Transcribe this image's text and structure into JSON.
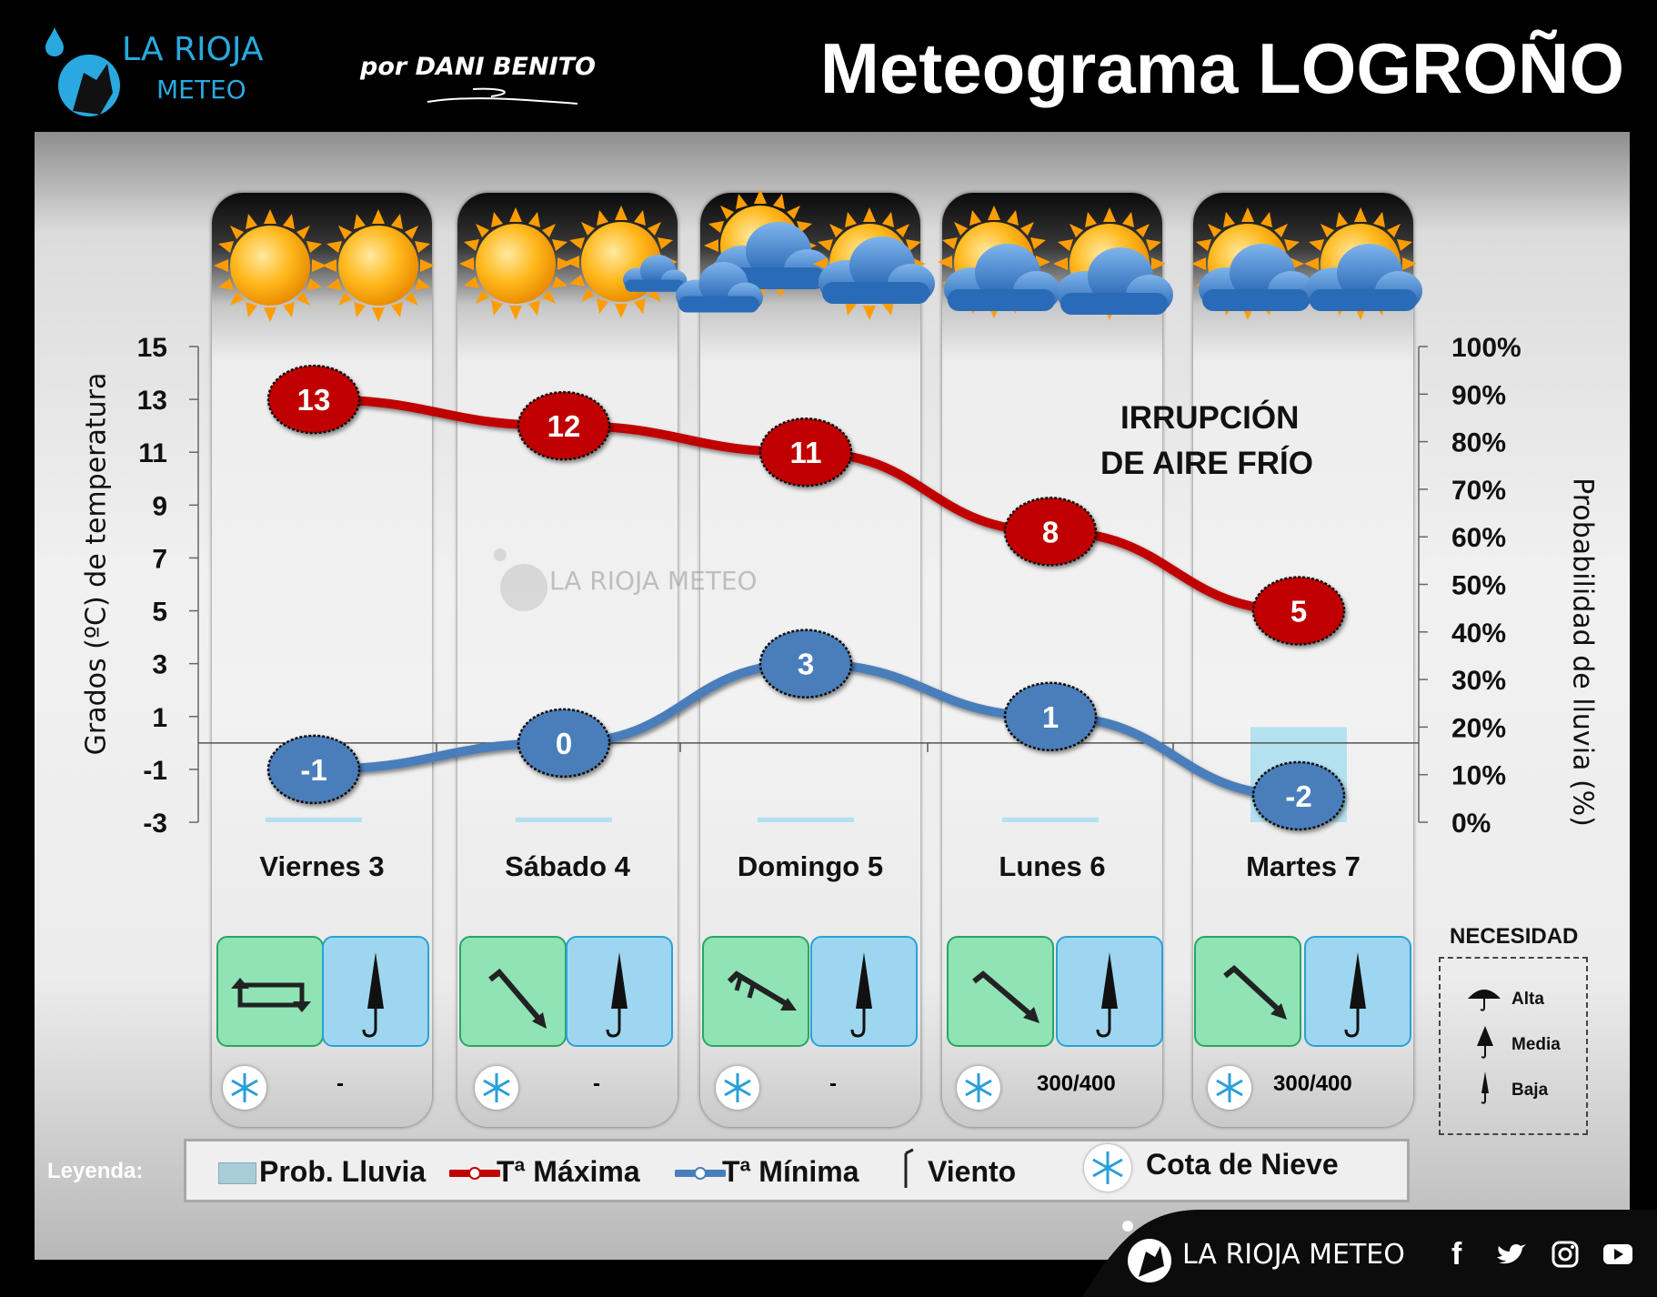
{
  "header": {
    "logo_line1": "LA RIOJA",
    "logo_line2": "METEO",
    "author": "por DANI BENITO",
    "title": "Meteograma LOGROÑO"
  },
  "watermark": "LA RIOJA METEO",
  "annotation": [
    "IRRUPCIÓN",
    "DE AIRE FRÍO"
  ],
  "days": [
    {
      "label": "Viernes 3",
      "sky": [
        "sun",
        "sun"
      ],
      "wind": "variable",
      "snow": "-"
    },
    {
      "label": "Sábado 4",
      "sky": [
        "sun",
        "sun-small-cloud"
      ],
      "wind": "nw",
      "snow": "-"
    },
    {
      "label": "Domingo 5",
      "sky": [
        "sun-cloud",
        "sun-cloud"
      ],
      "wind": "nw-strong",
      "snow": "-"
    },
    {
      "label": "Lunes 6",
      "sky": [
        "sun-cloud",
        "sun-cloud"
      ],
      "wind": "nw",
      "snow": "300/400"
    },
    {
      "label": "Martes 7",
      "sky": [
        "sun-cloud",
        "sun-cloud"
      ],
      "wind": "nw",
      "snow": "300/400"
    }
  ],
  "chart_data": {
    "type": "line",
    "categories": [
      "Viernes 3",
      "Sábado 4",
      "Domingo 5",
      "Lunes 6",
      "Martes 7"
    ],
    "series": [
      {
        "name": "Tª Máxima",
        "values": [
          13,
          12,
          11,
          8,
          5
        ],
        "color": "#c00000"
      },
      {
        "name": "Tª Mínima",
        "values": [
          -1,
          0,
          3,
          1,
          -2
        ],
        "color": "#4a7ebb"
      }
    ],
    "bars": {
      "name": "Prob. Lluvia",
      "values": [
        1,
        1,
        1,
        1,
        20
      ],
      "color": "#a8def0"
    },
    "ylabel": "Grados (ºC) de temperatura",
    "y2label": "Probabilidad de lluvia (%)",
    "ylim": [
      -3,
      15
    ],
    "y2lim": [
      0,
      100
    ],
    "yticks": [
      "15",
      "13",
      "11",
      "9",
      "7",
      "5",
      "3",
      "1",
      "-1",
      "-3"
    ],
    "y2ticks": [
      "100%",
      "90%",
      "80%",
      "70%",
      "60%",
      "50%",
      "40%",
      "30%",
      "20%",
      "10%",
      "0%"
    ]
  },
  "legend": {
    "title": "Leyenda:",
    "rain": "Prob. Lluvia",
    "max": "Tª Máxima",
    "min": "Tª Mínima",
    "wind": "Viento",
    "snow": "Cota de Nieve"
  },
  "necesidad": {
    "title": "NECESIDAD",
    "items": [
      "Alta",
      "Media",
      "Baja"
    ]
  },
  "footer": {
    "brand": "LA RIOJA METEO",
    "social": [
      "facebook-icon",
      "twitter-icon",
      "instagram-icon",
      "youtube-icon"
    ]
  },
  "colors": {
    "max": "#c00000",
    "min": "#4a7ebb",
    "rain": "#a8def0",
    "wind_box": "#8fe3b5",
    "umbrella_box": "#9fd6ef"
  }
}
